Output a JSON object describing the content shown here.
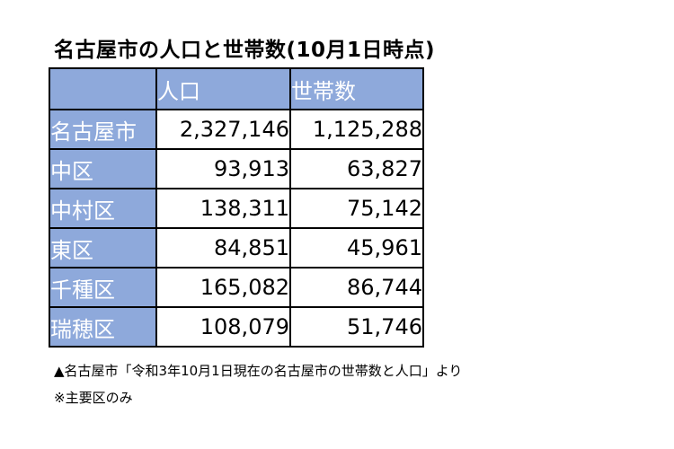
{
  "title": "名古屋市の人口と世帯数(10月1日時点)",
  "table": {
    "headers": [
      "",
      "人口",
      "世帯数"
    ],
    "rows": [
      {
        "name": "名古屋市",
        "population": "2,327,146",
        "households": "1,125,288"
      },
      {
        "name": "中区",
        "population": "93,913",
        "households": "63,827"
      },
      {
        "name": "中村区",
        "population": "138,311",
        "households": "75,142"
      },
      {
        "name": "東区",
        "population": "84,851",
        "households": "45,961"
      },
      {
        "name": "千種区",
        "population": "165,082",
        "households": "86,744"
      },
      {
        "name": "瑞穂区",
        "population": "108,079",
        "households": "51,746"
      }
    ]
  },
  "source": "▲名古屋市「令和3年10月1日現在の名古屋市の世帯数と人口」より",
  "note": "※主要区のみ",
  "colors": {
    "header_bg": "#8ea9db",
    "header_text": "#ffffff",
    "border": "#000000"
  }
}
